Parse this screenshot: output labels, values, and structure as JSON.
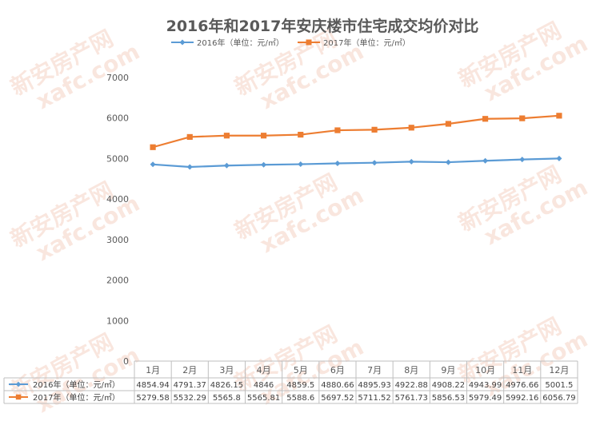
{
  "chart_data": {
    "type": "line",
    "title": "2016年和2017年安庆楼市住宅成交均价对比",
    "categories": [
      "1月",
      "2月",
      "3月",
      "4月",
      "5月",
      "6月",
      "7月",
      "8月",
      "9月",
      "10月",
      "11月",
      "12月"
    ],
    "category_labels": [
      "1月",
      "2月",
      "3月",
      "4月",
      "5月",
      "6月",
      "7月",
      "8月",
      "9月",
      "10月",
      "11月",
      "12月"
    ],
    "series": [
      {
        "name": "2016年（单位：元/㎡）",
        "legend_label": "2016年（单位：元/㎡）",
        "table_label": "2016年（单位：元/㎡）",
        "color": "#5b9bd5",
        "marker": "diamond",
        "values": [
          4854.94,
          4791.37,
          4826.15,
          4846,
          4859.5,
          4880.66,
          4895.93,
          4922.88,
          4908.22,
          4943.99,
          4976.66,
          5001.5
        ],
        "value_labels": [
          "4854.94",
          "4791.37",
          "4826.15",
          "4846",
          "4859.5",
          "4880.66",
          "4895.93",
          "4922.88",
          "4908.22",
          "4943.99",
          "4976.66",
          "5001.5"
        ]
      },
      {
        "name": "2017年（单位：元/㎡）",
        "legend_label": "2017年（单位：元/㎡）",
        "table_label": "2017年（单位：元/㎡）",
        "color": "#ed7d31",
        "marker": "square",
        "values": [
          5279.58,
          5532.29,
          5565.8,
          5565.81,
          5588.6,
          5697.52,
          5711.52,
          5761.73,
          5856.53,
          5979.49,
          5992.16,
          6056.79
        ],
        "value_labels": [
          "5279.58",
          "5532.29",
          "5565.8",
          "5565.81",
          "5588.6",
          "5697.52",
          "5711.52",
          "5761.73",
          "5856.53",
          "5979.49",
          "5992.16",
          "6056.79"
        ]
      }
    ],
    "ylim": [
      0,
      7000
    ],
    "yticks": [
      0,
      1000,
      2000,
      3000,
      4000,
      5000,
      6000,
      7000
    ],
    "ytick_labels": [
      "0",
      "1000",
      "2000",
      "3000",
      "4000",
      "5000",
      "6000",
      "7000"
    ],
    "grid": false,
    "legend_position": "top",
    "data_table": true
  },
  "watermark": {
    "line1": "新安房产网",
    "line2": "xafc.com",
    "color": "#f2c8b8"
  }
}
